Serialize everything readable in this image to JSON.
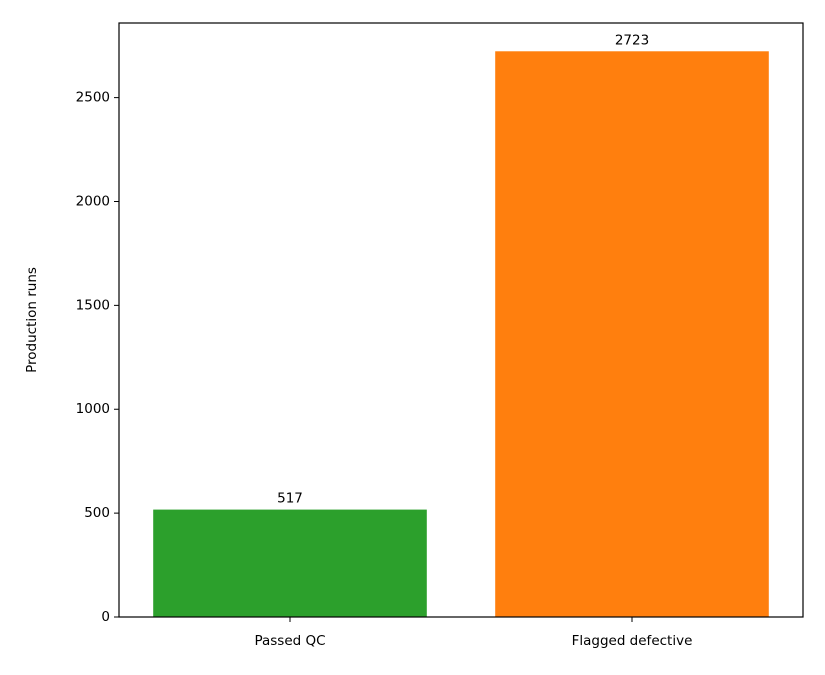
{
  "chart_data": {
    "type": "bar",
    "y_label": "Production runs",
    "categories": [
      "Passed QC",
      "Flagged defective"
    ],
    "values": [
      517,
      2723
    ],
    "colors": [
      "#2ca02c",
      "#ff7f0e"
    ],
    "ylim": [
      0,
      2859.15
    ],
    "yticks": [
      0,
      500,
      1000,
      1500,
      2000,
      2500
    ],
    "grid": false
  }
}
